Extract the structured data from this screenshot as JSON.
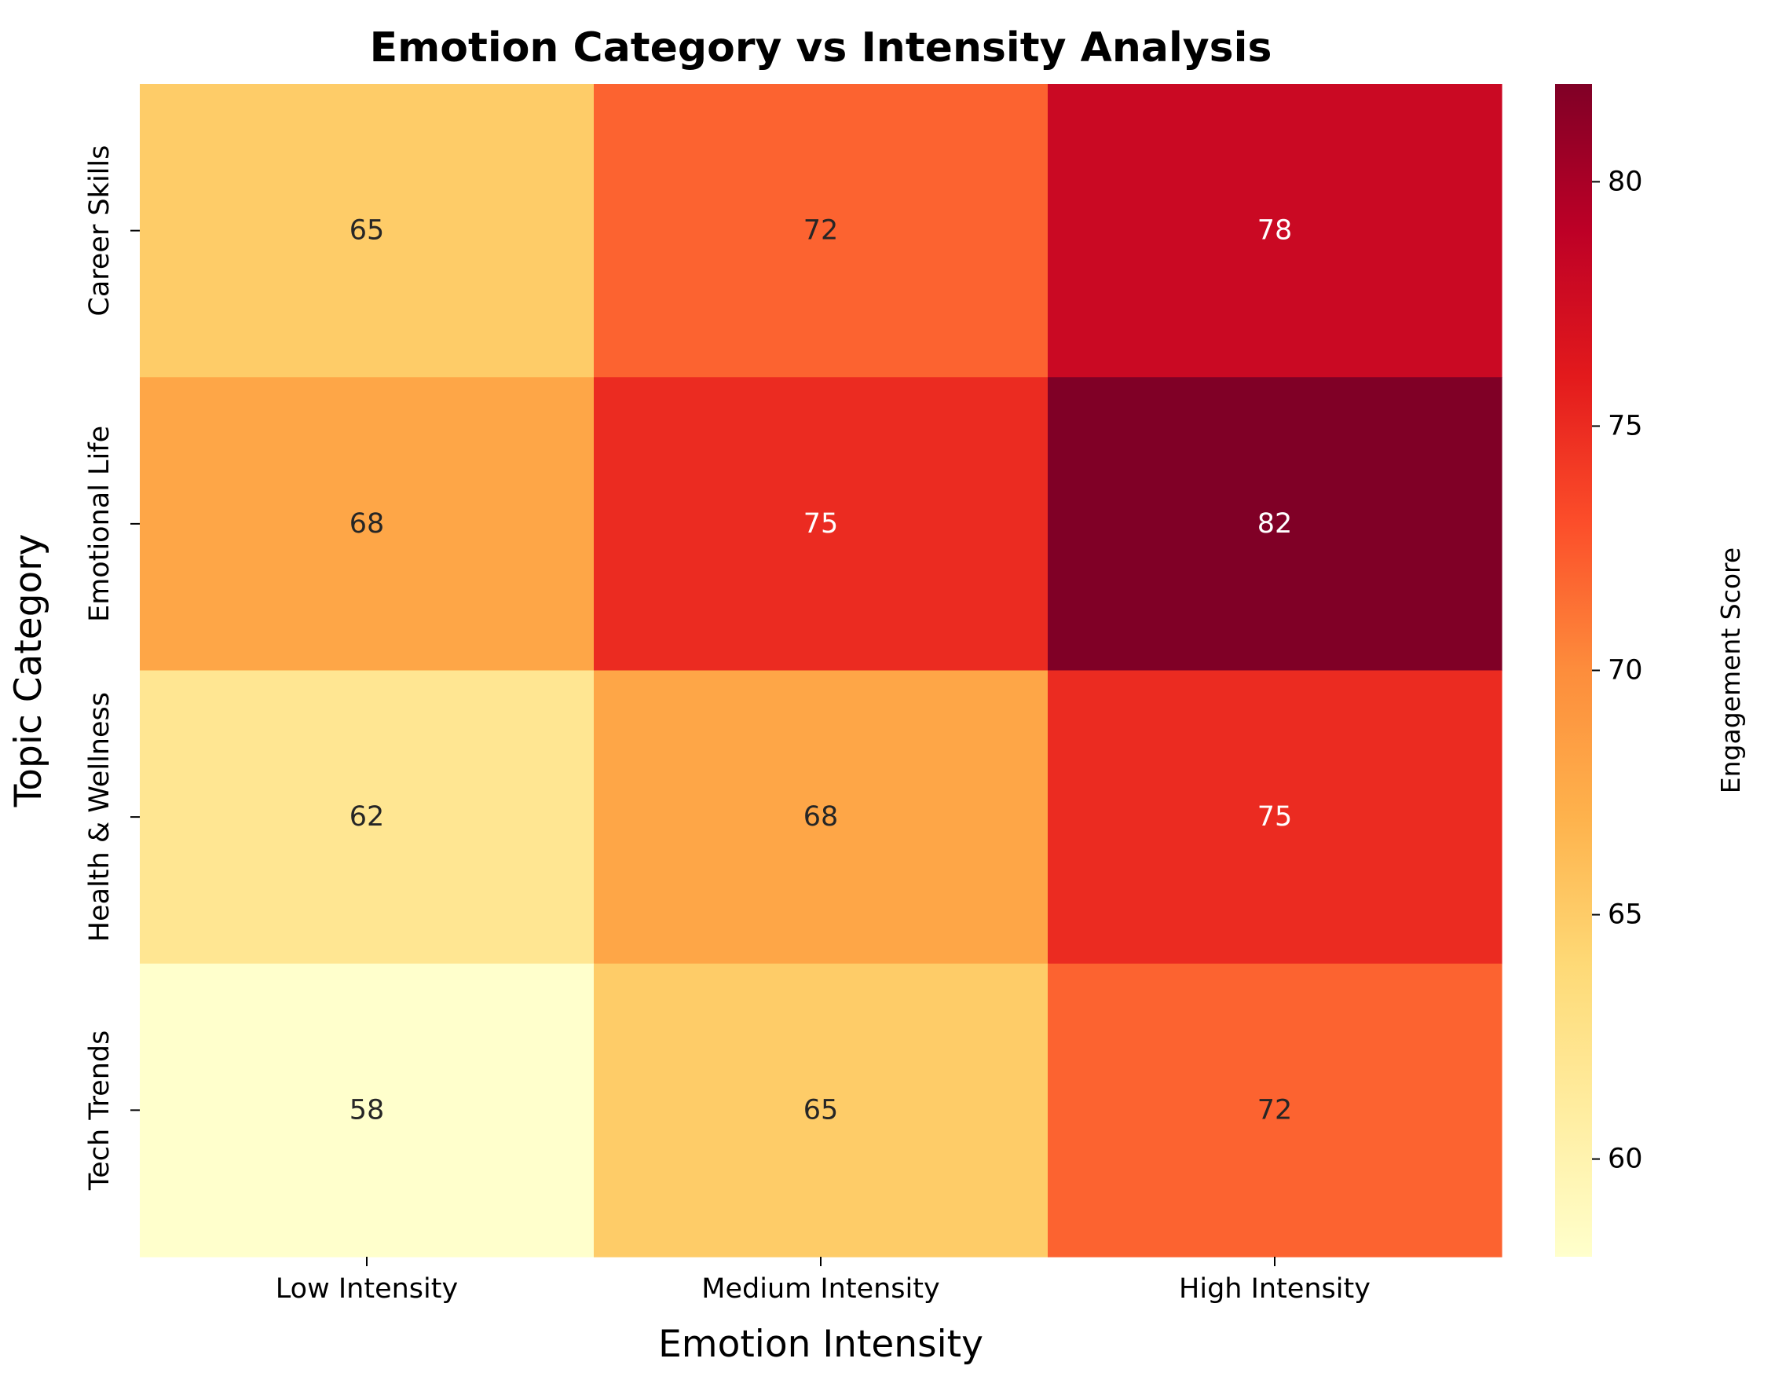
{
  "chart_data": {
    "type": "heatmap",
    "title": "Emotion Category vs Intensity Analysis",
    "xlabel": "Emotion Intensity",
    "ylabel": "Topic Category",
    "x_categories": [
      "Low Intensity",
      "Medium Intensity",
      "High Intensity"
    ],
    "y_categories": [
      "Career Skills",
      "Emotional Life",
      "Health & Wellness",
      "Tech Trends"
    ],
    "values": [
      [
        65,
        72,
        78
      ],
      [
        68,
        75,
        82
      ],
      [
        62,
        68,
        75
      ],
      [
        58,
        65,
        72
      ]
    ],
    "colorbar": {
      "label": "Engagement Score",
      "range": [
        58,
        82
      ],
      "ticks": [
        60,
        65,
        70,
        75,
        80
      ],
      "colormap": "YlOrRd"
    },
    "annotations": true,
    "grid": false
  }
}
